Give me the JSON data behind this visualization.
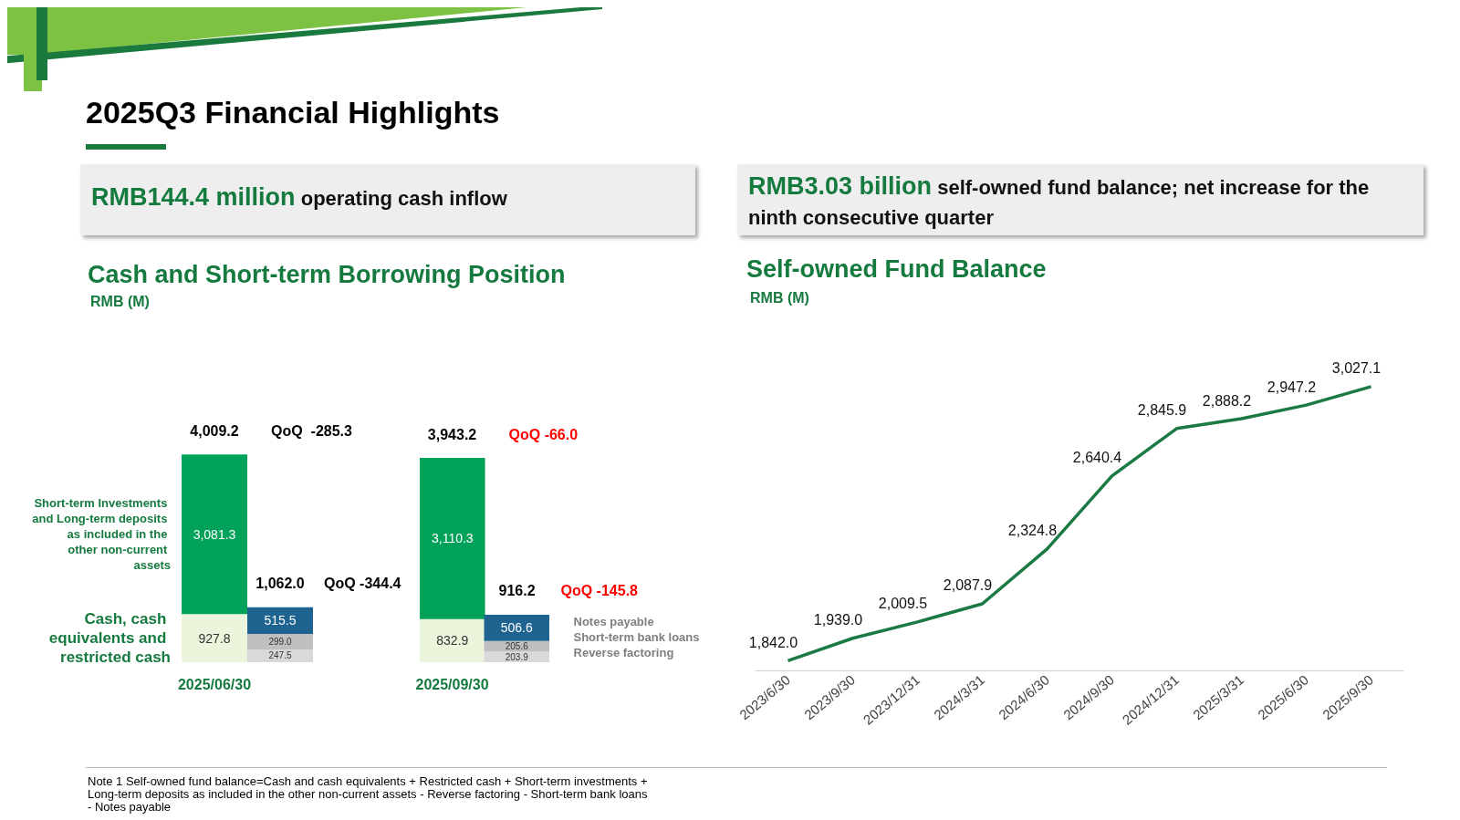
{
  "chart_data": [
    {
      "type": "other",
      "title": "2025Q3 Financial Highlights",
      "annotations": [
        "RMB144.4 million",
        "operating cash inflow",
        "RMB3.03 billion",
        "self-owned fund balance; net increase for the ninth consecutive quarter",
        "Note 1 Self-owned fund balance=Cash and cash equivalents + Restricted cash + Short-term investments + Long-term deposits as included in the other non-current assets - Reverse factoring - Short-term bank loans - Notes payable",
        "Cash and Short-term Borrowing Position",
        "RMB (M)"
      ]
    },
    {
      "type": "bar",
      "stacked": true,
      "categories": [
        "2025/06/30",
        null
      ],
      "series": [
        {
          "name": "Cash, cash equivalents and restricted cash",
          "color": "#eaf5dc",
          "values": [
            927.8,
            null
          ],
          "value_labels": [
            "927.8",
            null
          ]
        },
        {
          "name": "Short-term Investments and Long-term deposits as included in the other non-current assets",
          "color": "#00a159",
          "values": [
            3081.3,
            null
          ],
          "value_labels": [
            "3,081.3",
            null
          ]
        },
        {
          "color": "#d9d9d9",
          "values": [
            null,
            247.5
          ],
          "value_labels": [
            null,
            "247.5"
          ]
        },
        {
          "color": "#bfbfbf",
          "values": [
            null,
            299.0
          ],
          "value_labels": [
            null,
            "299.0"
          ]
        },
        {
          "color": "#1f6391",
          "values": [
            null,
            515.5
          ],
          "value_labels": [
            null,
            "515.5"
          ]
        }
      ],
      "totals": [
        "4,009.2",
        "1,062.0"
      ],
      "annotations": [
        "QoQ  -285.3",
        "QoQ -344.4"
      ]
    },
    {
      "type": "bar",
      "stacked": true,
      "categories": [
        "2025/09/30",
        null
      ],
      "series": [
        {
          "color": "#eaf5dc",
          "values": [
            832.9,
            null
          ],
          "value_labels": [
            "832.9",
            null
          ]
        },
        {
          "color": "#00a159",
          "values": [
            3110.3,
            null
          ],
          "value_labels": [
            "3,110.3",
            null
          ]
        },
        {
          "name": "Reverse factoring",
          "color": "#d9d9d9",
          "values": [
            null,
            203.9
          ],
          "value_labels": [
            null,
            "203.9"
          ]
        },
        {
          "name": "Short-term bank loans",
          "color": "#bfbfbf",
          "values": [
            null,
            205.6
          ],
          "value_labels": [
            null,
            "205.6"
          ]
        },
        {
          "name": "Notes payable",
          "color": "#1f6391",
          "values": [
            null,
            506.6
          ],
          "value_labels": [
            null,
            "506.6"
          ]
        }
      ],
      "totals": [
        "3,943.2",
        "916.2"
      ],
      "annotations": [
        "QoQ -66.0",
        "QoQ -145.8"
      ]
    },
    {
      "type": "line",
      "title": "Self-owned Fund Balance",
      "ylabel": "RMB (M)",
      "categories": [
        "2023/6/30",
        "2023/9/30",
        "2023/12/31",
        "2024/3/31",
        "2024/6/30",
        "2024/9/30",
        "2024/12/31",
        "2025/3/31",
        "2025/6/30",
        "2025/9/30"
      ],
      "series": [
        {
          "color": "#1b7a43",
          "values": [
            1842.0,
            1939.0,
            2009.5,
            2087.9,
            2324.8,
            2640.4,
            2845.9,
            2888.2,
            2947.2,
            3027.1
          ],
          "value_labels": [
            "1,842.0",
            "1,939.0",
            "2,009.5",
            "2,087.9",
            "2,324.8",
            "2,640.4",
            "2,845.9",
            "2,888.2",
            "2,947.2",
            "3,027.1"
          ]
        }
      ]
    }
  ]
}
